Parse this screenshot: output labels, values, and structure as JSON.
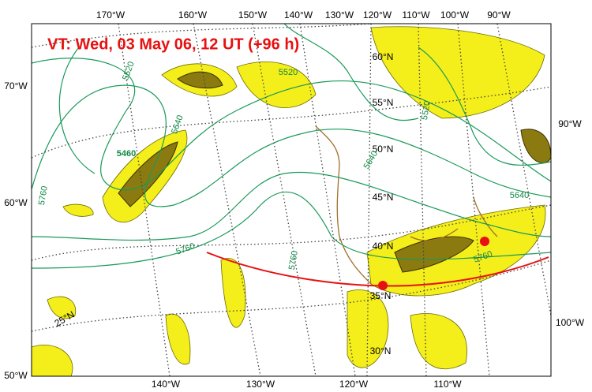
{
  "header": {
    "title": "VT:  Wed, 03 May 06, 12 UT (+96 h)"
  },
  "frame_labels": {
    "top": [
      "170°W",
      "160°W",
      "150°W",
      "140°W",
      "130°W",
      "120°W",
      "110°W",
      "100°W",
      "90°W"
    ],
    "bottom": [
      "140°W",
      "130°W",
      "120°W",
      "110°W"
    ],
    "left": [
      "70°W",
      "60°W",
      "50°W"
    ],
    "right": [
      "90°W",
      "100°W"
    ]
  },
  "latitude_labels": [
    "60°N",
    "55°N",
    "50°N",
    "45°N",
    "40°N",
    "35°N",
    "30°N",
    "25°N"
  ],
  "contour_labels": [
    "5520",
    "5520",
    "5640",
    "5460",
    "5760",
    "5760",
    "5760",
    "5640",
    "5640",
    "5760",
    "5520"
  ]
}
